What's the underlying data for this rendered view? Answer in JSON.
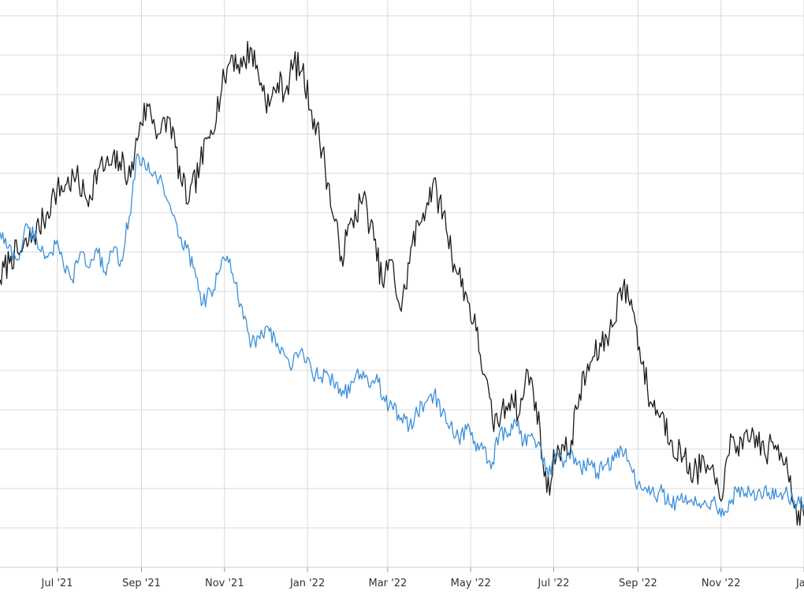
{
  "chart_data": {
    "type": "line",
    "title": "",
    "xlabel": "",
    "ylabel": "",
    "grid": true,
    "xlim": [
      "2021-05-20",
      "2023-01-01"
    ],
    "x_ticks": [
      {
        "date": "2021-07-01",
        "label": "Jul '21"
      },
      {
        "date": "2021-09-01",
        "label": "Sep '21"
      },
      {
        "date": "2021-11-01",
        "label": "Nov '21"
      },
      {
        "date": "2022-01-01",
        "label": "Jan '22"
      },
      {
        "date": "2022-03-01",
        "label": "Mar '22"
      },
      {
        "date": "2022-05-01",
        "label": "May '22"
      },
      {
        "date": "2022-07-01",
        "label": "Jul '22"
      },
      {
        "date": "2022-09-01",
        "label": "Sep '22"
      },
      {
        "date": "2022-11-01",
        "label": "Nov '22"
      },
      {
        "date": "2023-01-01",
        "label": "Jan"
      }
    ],
    "ylim": [
      0,
      14
    ],
    "y_gridlines": [
      1,
      2,
      3,
      4,
      5,
      6,
      7,
      8,
      9,
      10,
      11,
      12,
      13,
      14
    ],
    "series": [
      {
        "color": "#1a1a1a",
        "points": [
          [
            "2021-05-20",
            7.3
          ],
          [
            "2021-05-28",
            7.9
          ],
          [
            "2021-06-05",
            8.0
          ],
          [
            "2021-06-13",
            8.4
          ],
          [
            "2021-06-21",
            8.8
          ],
          [
            "2021-06-29",
            9.5
          ],
          [
            "2021-07-07",
            9.7
          ],
          [
            "2021-07-15",
            9.9
          ],
          [
            "2021-07-23",
            9.3
          ],
          [
            "2021-07-31",
            10.1
          ],
          [
            "2021-08-08",
            10.2
          ],
          [
            "2021-08-16",
            10.3
          ],
          [
            "2021-08-24",
            9.9
          ],
          [
            "2021-08-31",
            11.3
          ],
          [
            "2021-09-06",
            11.7
          ],
          [
            "2021-09-14",
            11.0
          ],
          [
            "2021-09-22",
            11.4
          ],
          [
            "2021-09-30",
            9.8
          ],
          [
            "2021-10-06",
            9.3
          ],
          [
            "2021-10-14",
            10.2
          ],
          [
            "2021-10-22",
            11.1
          ],
          [
            "2021-11-01",
            12.4
          ],
          [
            "2021-11-06",
            13.0
          ],
          [
            "2021-11-14",
            12.7
          ],
          [
            "2021-11-20",
            13.2
          ],
          [
            "2021-11-28",
            12.3
          ],
          [
            "2021-12-04",
            11.7
          ],
          [
            "2021-12-10",
            12.3
          ],
          [
            "2021-12-16",
            12.1
          ],
          [
            "2021-12-22",
            12.8
          ],
          [
            "2021-12-28",
            12.6
          ],
          [
            "2022-01-04",
            11.6
          ],
          [
            "2022-01-12",
            10.6
          ],
          [
            "2022-01-20",
            8.9
          ],
          [
            "2022-01-26",
            7.9
          ],
          [
            "2022-02-03",
            8.8
          ],
          [
            "2022-02-11",
            9.4
          ],
          [
            "2022-02-19",
            8.3
          ],
          [
            "2022-02-25",
            7.2
          ],
          [
            "2022-03-03",
            7.8
          ],
          [
            "2022-03-11",
            6.5
          ],
          [
            "2022-03-19",
            8.2
          ],
          [
            "2022-03-27",
            9.0
          ],
          [
            "2022-04-03",
            9.7
          ],
          [
            "2022-04-11",
            9.0
          ],
          [
            "2022-04-19",
            7.7
          ],
          [
            "2022-04-27",
            7.0
          ],
          [
            "2022-05-05",
            6.0
          ],
          [
            "2022-05-11",
            4.9
          ],
          [
            "2022-05-17",
            3.7
          ],
          [
            "2022-05-23",
            3.8
          ],
          [
            "2022-05-31",
            4.4
          ],
          [
            "2022-06-06",
            3.9
          ],
          [
            "2022-06-12",
            5.0
          ],
          [
            "2022-06-18",
            4.2
          ],
          [
            "2022-06-26",
            1.9
          ],
          [
            "2022-07-04",
            3.1
          ],
          [
            "2022-07-12",
            2.9
          ],
          [
            "2022-07-20",
            4.4
          ],
          [
            "2022-07-28",
            5.2
          ],
          [
            "2022-08-05",
            5.6
          ],
          [
            "2022-08-13",
            6.1
          ],
          [
            "2022-08-19",
            7.1
          ],
          [
            "2022-08-27",
            6.8
          ],
          [
            "2022-09-02",
            5.6
          ],
          [
            "2022-09-10",
            4.2
          ],
          [
            "2022-09-18",
            3.9
          ],
          [
            "2022-09-26",
            3.2
          ],
          [
            "2022-10-04",
            2.8
          ],
          [
            "2022-10-12",
            2.4
          ],
          [
            "2022-10-20",
            2.6
          ],
          [
            "2022-10-28",
            2.1
          ],
          [
            "2022-11-03",
            2.0
          ],
          [
            "2022-11-09",
            3.3
          ],
          [
            "2022-11-17",
            3.0
          ],
          [
            "2022-11-25",
            3.4
          ],
          [
            "2022-12-03",
            2.9
          ],
          [
            "2022-12-11",
            3.1
          ],
          [
            "2022-12-19",
            2.8
          ],
          [
            "2022-12-25",
            1.5
          ],
          [
            "2023-01-01",
            1.3
          ]
        ]
      },
      {
        "color": "#3b8fd9",
        "points": [
          [
            "2021-05-20",
            8.5
          ],
          [
            "2021-05-26",
            8.1
          ],
          [
            "2021-06-02",
            7.8
          ],
          [
            "2021-06-09",
            8.7
          ],
          [
            "2021-06-16",
            8.3
          ],
          [
            "2021-06-23",
            7.9
          ],
          [
            "2021-06-30",
            8.2
          ],
          [
            "2021-07-06",
            7.6
          ],
          [
            "2021-07-12",
            7.3
          ],
          [
            "2021-07-18",
            8.0
          ],
          [
            "2021-07-24",
            7.6
          ],
          [
            "2021-07-30",
            8.1
          ],
          [
            "2021-08-05",
            7.5
          ],
          [
            "2021-08-11",
            8.0
          ],
          [
            "2021-08-17",
            7.8
          ],
          [
            "2021-08-23",
            8.9
          ],
          [
            "2021-08-29",
            10.5
          ],
          [
            "2021-09-04",
            10.1
          ],
          [
            "2021-09-10",
            10.0
          ],
          [
            "2021-09-16",
            9.8
          ],
          [
            "2021-09-22",
            9.2
          ],
          [
            "2021-09-28",
            8.4
          ],
          [
            "2021-10-04",
            8.1
          ],
          [
            "2021-10-10",
            7.6
          ],
          [
            "2021-10-16",
            6.7
          ],
          [
            "2021-10-22",
            7.0
          ],
          [
            "2021-10-28",
            7.5
          ],
          [
            "2021-11-03",
            7.9
          ],
          [
            "2021-11-09",
            7.2
          ],
          [
            "2021-11-15",
            6.3
          ],
          [
            "2021-11-21",
            5.7
          ],
          [
            "2021-11-27",
            5.8
          ],
          [
            "2021-12-03",
            6.1
          ],
          [
            "2021-12-09",
            5.6
          ],
          [
            "2021-12-15",
            5.4
          ],
          [
            "2021-12-21",
            5.1
          ],
          [
            "2021-12-27",
            5.5
          ],
          [
            "2022-01-04",
            5.0
          ],
          [
            "2022-01-10",
            4.8
          ],
          [
            "2022-01-16",
            4.9
          ],
          [
            "2022-01-22",
            4.7
          ],
          [
            "2022-01-28",
            4.4
          ],
          [
            "2022-02-03",
            4.7
          ],
          [
            "2022-02-09",
            4.9
          ],
          [
            "2022-02-15",
            4.6
          ],
          [
            "2022-02-21",
            4.9
          ],
          [
            "2022-02-27",
            4.2
          ],
          [
            "2022-03-05",
            4.0
          ],
          [
            "2022-03-11",
            3.8
          ],
          [
            "2022-03-17",
            3.6
          ],
          [
            "2022-03-23",
            3.9
          ],
          [
            "2022-03-29",
            4.2
          ],
          [
            "2022-04-04",
            4.4
          ],
          [
            "2022-04-10",
            3.9
          ],
          [
            "2022-04-16",
            3.6
          ],
          [
            "2022-04-22",
            3.3
          ],
          [
            "2022-04-28",
            3.5
          ],
          [
            "2022-05-04",
            3.2
          ],
          [
            "2022-05-10",
            3.0
          ],
          [
            "2022-05-16",
            2.5
          ],
          [
            "2022-05-22",
            3.4
          ],
          [
            "2022-05-28",
            3.3
          ],
          [
            "2022-06-03",
            3.7
          ],
          [
            "2022-06-09",
            3.2
          ],
          [
            "2022-06-15",
            3.4
          ],
          [
            "2022-06-21",
            3.1
          ],
          [
            "2022-06-27",
            2.3
          ],
          [
            "2022-07-03",
            2.9
          ],
          [
            "2022-07-09",
            2.7
          ],
          [
            "2022-07-15",
            2.9
          ],
          [
            "2022-07-21",
            2.5
          ],
          [
            "2022-07-27",
            2.6
          ],
          [
            "2022-08-02",
            2.4
          ],
          [
            "2022-08-08",
            2.6
          ],
          [
            "2022-08-14",
            2.7
          ],
          [
            "2022-08-20",
            3.0
          ],
          [
            "2022-08-26",
            2.6
          ],
          [
            "2022-09-01",
            2.1
          ],
          [
            "2022-09-07",
            2.0
          ],
          [
            "2022-09-13",
            1.8
          ],
          [
            "2022-09-19",
            1.9
          ],
          [
            "2022-09-25",
            1.6
          ],
          [
            "2022-10-01",
            1.7
          ],
          [
            "2022-10-07",
            1.6
          ],
          [
            "2022-10-13",
            1.8
          ],
          [
            "2022-10-19",
            1.6
          ],
          [
            "2022-10-25",
            1.7
          ],
          [
            "2022-10-31",
            1.5
          ],
          [
            "2022-11-06",
            1.4
          ],
          [
            "2022-11-12",
            2.0
          ],
          [
            "2022-11-18",
            1.8
          ],
          [
            "2022-11-24",
            1.9
          ],
          [
            "2022-11-30",
            1.9
          ],
          [
            "2022-12-06",
            1.9
          ],
          [
            "2022-12-12",
            1.8
          ],
          [
            "2022-12-18",
            1.9
          ],
          [
            "2022-12-24",
            1.7
          ],
          [
            "2023-01-01",
            1.6
          ]
        ]
      }
    ]
  }
}
